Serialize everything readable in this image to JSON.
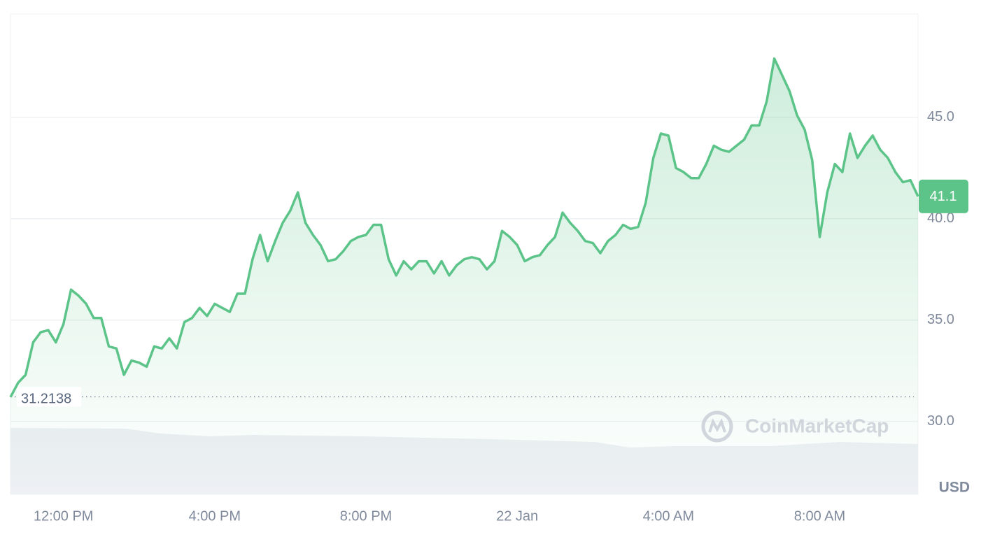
{
  "chart_data": {
    "type": "line",
    "categories": [
      null,
      null,
      null,
      null,
      null,
      null,
      null,
      "12:00 PM",
      null,
      null,
      null,
      null,
      null,
      null,
      null,
      null,
      null,
      null,
      null,
      null,
      null,
      null,
      null,
      null,
      null,
      null,
      null,
      "4:00 PM",
      null,
      null,
      null,
      null,
      null,
      null,
      null,
      null,
      null,
      null,
      null,
      null,
      null,
      null,
      null,
      null,
      null,
      null,
      null,
      "8:00 PM",
      null,
      null,
      null,
      null,
      null,
      null,
      null,
      null,
      null,
      null,
      null,
      null,
      null,
      null,
      null,
      null,
      null,
      null,
      null,
      "22 Jan",
      null,
      null,
      null,
      null,
      null,
      null,
      null,
      null,
      null,
      null,
      null,
      null,
      null,
      null,
      null,
      null,
      null,
      null,
      null,
      "4:00 AM",
      null,
      null,
      null,
      null,
      null,
      null,
      null,
      null,
      null,
      null,
      null,
      null,
      null,
      null,
      null,
      null,
      null,
      null,
      null,
      "8:00 AM",
      null,
      null,
      null,
      null,
      null,
      null,
      null,
      null,
      null,
      null,
      null,
      null,
      null
    ],
    "values": [
      31.2,
      31.9,
      32.3,
      33.9,
      34.4,
      34.5,
      33.9,
      34.8,
      36.5,
      36.2,
      35.8,
      35.1,
      35.1,
      33.7,
      33.6,
      32.3,
      33.0,
      32.9,
      32.7,
      33.7,
      33.6,
      34.1,
      33.6,
      34.9,
      35.1,
      35.6,
      35.2,
      35.8,
      35.6,
      35.4,
      36.3,
      36.3,
      38.0,
      39.2,
      37.9,
      38.9,
      39.8,
      40.4,
      41.3,
      39.8,
      39.2,
      38.7,
      37.9,
      38.0,
      38.4,
      38.9,
      39.1,
      39.2,
      39.7,
      39.7,
      38.0,
      37.2,
      37.9,
      37.5,
      37.9,
      37.9,
      37.3,
      37.9,
      37.2,
      37.7,
      38.0,
      38.1,
      38.0,
      37.5,
      37.9,
      39.4,
      39.1,
      38.7,
      37.9,
      38.1,
      38.2,
      38.7,
      39.1,
      40.3,
      39.8,
      39.4,
      38.9,
      38.8,
      38.3,
      38.9,
      39.2,
      39.7,
      39.5,
      39.6,
      40.8,
      43.0,
      44.2,
      44.1,
      42.5,
      42.3,
      42.0,
      42.0,
      42.7,
      43.6,
      43.4,
      43.3,
      43.6,
      43.9,
      44.6,
      44.6,
      45.8,
      47.9,
      47.1,
      46.3,
      45.1,
      44.4,
      42.9,
      39.1,
      41.3,
      42.7,
      42.3,
      44.2,
      43.0,
      43.6,
      44.1,
      43.4,
      43.0,
      42.3,
      41.8,
      41.9,
      41.1
    ],
    "color": "#5cc489",
    "ylim": [
      26.4,
      50.1
    ],
    "yticks": [
      {
        "value": 30,
        "label": "30.0"
      },
      {
        "value": 35,
        "label": "35.0"
      },
      {
        "value": 40,
        "label": "40.0"
      },
      {
        "value": 45,
        "label": "45.0"
      }
    ],
    "grid": true,
    "baseline": 31.2138,
    "unit_label": "USD",
    "watermark": "CoinMarketCap"
  }
}
